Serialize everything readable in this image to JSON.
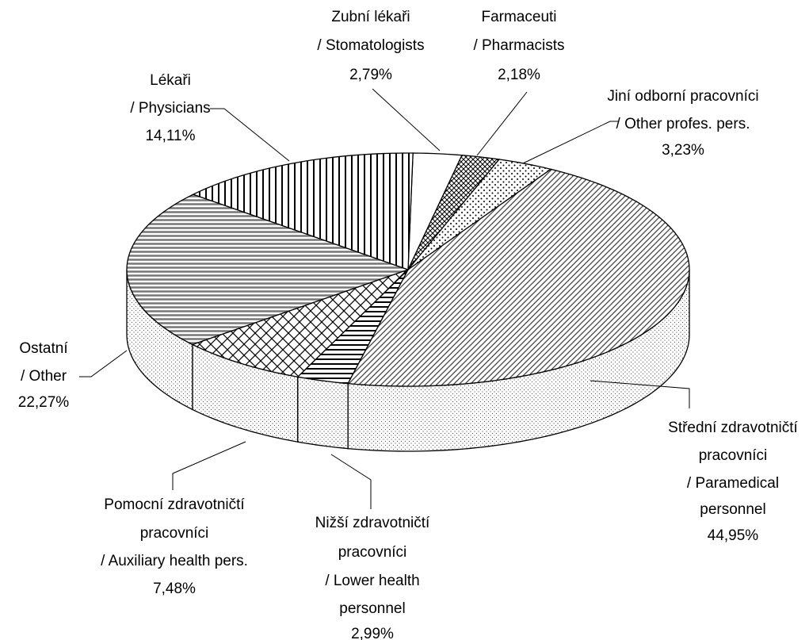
{
  "chart_data": {
    "type": "pie3d",
    "categories": [
      [
        "Zubní lékaři",
        "/ Stomatologists"
      ],
      [
        "Farmaceuti",
        "/ Pharmacists"
      ],
      [
        "Jiní odborní pracovníci",
        "/ Other profes. pers."
      ],
      [
        "Střední zdravotničtí",
        "pracovníci",
        "/ Paramedical",
        "personnel"
      ],
      [
        "Nižší zdravotničtí",
        "pracovníci",
        "/ Lower health",
        "personnel"
      ],
      [
        "Pomocní zdravotničtí",
        "pracovníci",
        "/ Auxiliary health pers."
      ],
      [
        "Ostatní",
        "/ Other"
      ],
      [
        "Lékaři",
        "/ Physicians"
      ]
    ],
    "values": [
      2.79,
      2.18,
      3.23,
      44.95,
      2.99,
      7.48,
      22.27,
      14.11
    ],
    "value_labels": [
      "2,79%",
      "2,18%",
      "3,23%",
      "44,95%",
      "2,99%",
      "7,48%",
      "22,27%",
      "14,11%"
    ]
  }
}
